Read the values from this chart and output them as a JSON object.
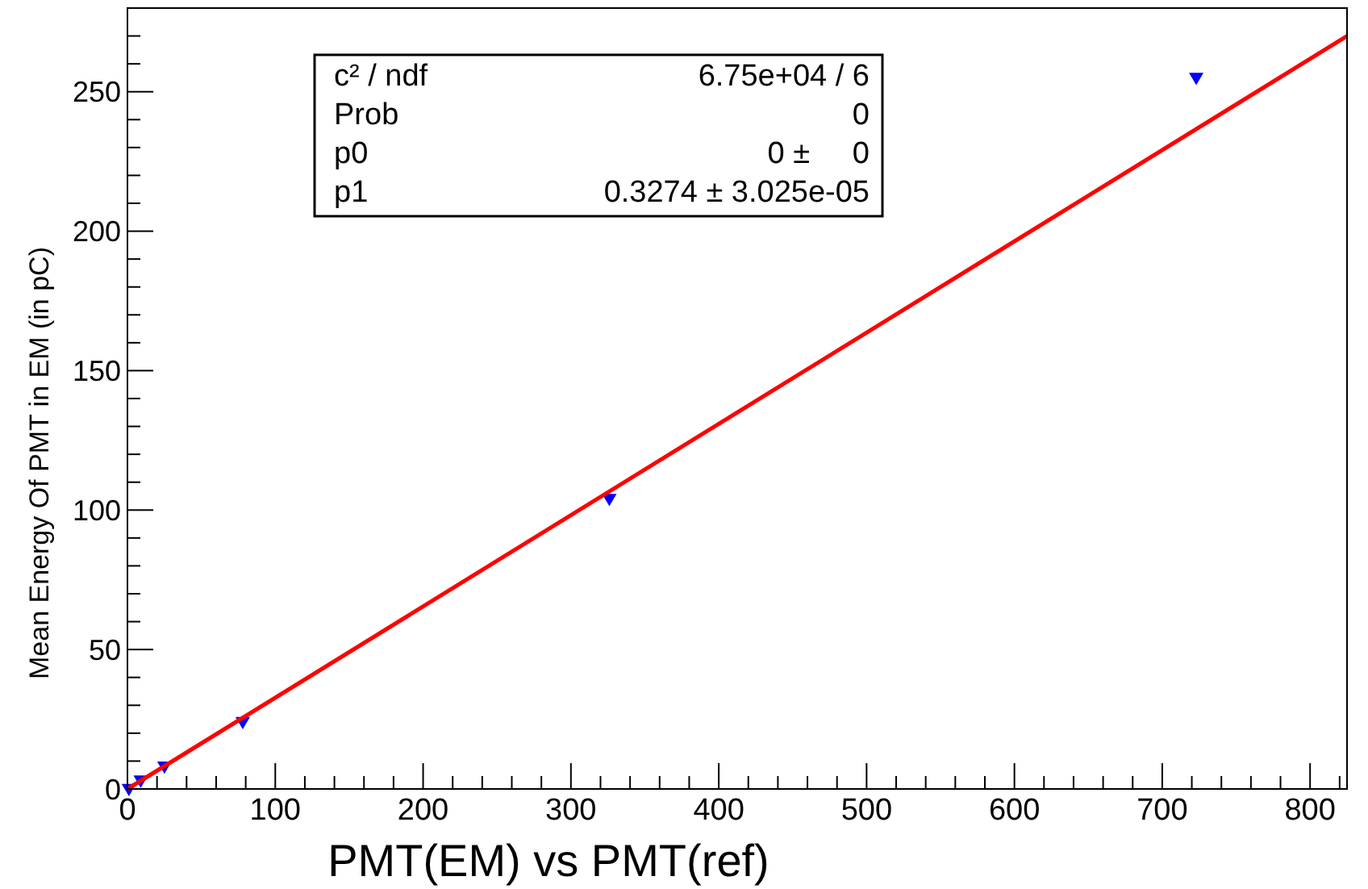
{
  "chart_data": {
    "type": "scatter",
    "xlabel": "PMT(EM) vs PMT(ref)",
    "ylabel": "Mean Energy Of PMT in EM (in pC)",
    "xlim": [
      0,
      825
    ],
    "ylim": [
      0,
      280
    ],
    "xticks": [
      0,
      {
        "value": 20,
        "label": null
      },
      {
        "value": 40,
        "label": null
      },
      {
        "value": 60,
        "label": null
      },
      {
        "value": 80,
        "label": null
      },
      100,
      {
        "value": 120,
        "label": null
      },
      {
        "value": 140,
        "label": null
      },
      {
        "value": 160,
        "label": null
      },
      {
        "value": 180,
        "label": null
      },
      200,
      {
        "value": 220,
        "label": null
      },
      {
        "value": 240,
        "label": null
      },
      {
        "value": 260,
        "label": null
      },
      {
        "value": 280,
        "label": null
      },
      300,
      {
        "value": 320,
        "label": null
      },
      {
        "value": 340,
        "label": null
      },
      {
        "value": 360,
        "label": null
      },
      {
        "value": 380,
        "label": null
      },
      400,
      {
        "value": 420,
        "label": null
      },
      {
        "value": 440,
        "label": null
      },
      {
        "value": 460,
        "label": null
      },
      {
        "value": 480,
        "label": null
      },
      500,
      {
        "value": 520,
        "label": null
      },
      {
        "value": 540,
        "label": null
      },
      {
        "value": 560,
        "label": null
      },
      {
        "value": 580,
        "label": null
      },
      600,
      {
        "value": 620,
        "label": null
      },
      {
        "value": 640,
        "label": null
      },
      {
        "value": 660,
        "label": null
      },
      {
        "value": 680,
        "label": null
      },
      700,
      {
        "value": 720,
        "label": null
      },
      {
        "value": 740,
        "label": null
      },
      {
        "value": 760,
        "label": null
      },
      {
        "value": 780,
        "label": null
      },
      800,
      {
        "value": 820,
        "label": null
      }
    ],
    "yticks": [
      0,
      {
        "value": 10,
        "label": null
      },
      {
        "value": 20,
        "label": null
      },
      {
        "value": 30,
        "label": null
      },
      {
        "value": 40,
        "label": null
      },
      50,
      {
        "value": 60,
        "label": null
      },
      {
        "value": 70,
        "label": null
      },
      {
        "value": 80,
        "label": null
      },
      {
        "value": 90,
        "label": null
      },
      100,
      {
        "value": 110,
        "label": null
      },
      {
        "value": 120,
        "label": null
      },
      {
        "value": 130,
        "label": null
      },
      {
        "value": 140,
        "label": null
      },
      150,
      {
        "value": 160,
        "label": null
      },
      {
        "value": 170,
        "label": null
      },
      {
        "value": 180,
        "label": null
      },
      {
        "value": 190,
        "label": null
      },
      200,
      {
        "value": 210,
        "label": null
      },
      {
        "value": 220,
        "label": null
      },
      {
        "value": 230,
        "label": null
      },
      {
        "value": 240,
        "label": null
      },
      250,
      {
        "value": 260,
        "label": null
      },
      {
        "value": 270,
        "label": null
      }
    ],
    "grid": false,
    "series": [
      {
        "marker": "triangle",
        "color": "#0000ff",
        "x": [
          1,
          9,
          25,
          78,
          326,
          723
        ],
        "values": [
          0,
          3,
          8,
          24,
          104,
          255
        ]
      },
      {
        "type": "line",
        "color": "#ff0000",
        "x": [
          0,
          825
        ],
        "values": [
          0,
          270
        ]
      }
    ],
    "annotations": [
      "c² / ndf",
      "6.75e+04 / 6",
      "Prob",
      "0",
      "p0",
      "0 ±     0",
      "p1",
      "0.3274 ± 3.025e-05"
    ]
  }
}
